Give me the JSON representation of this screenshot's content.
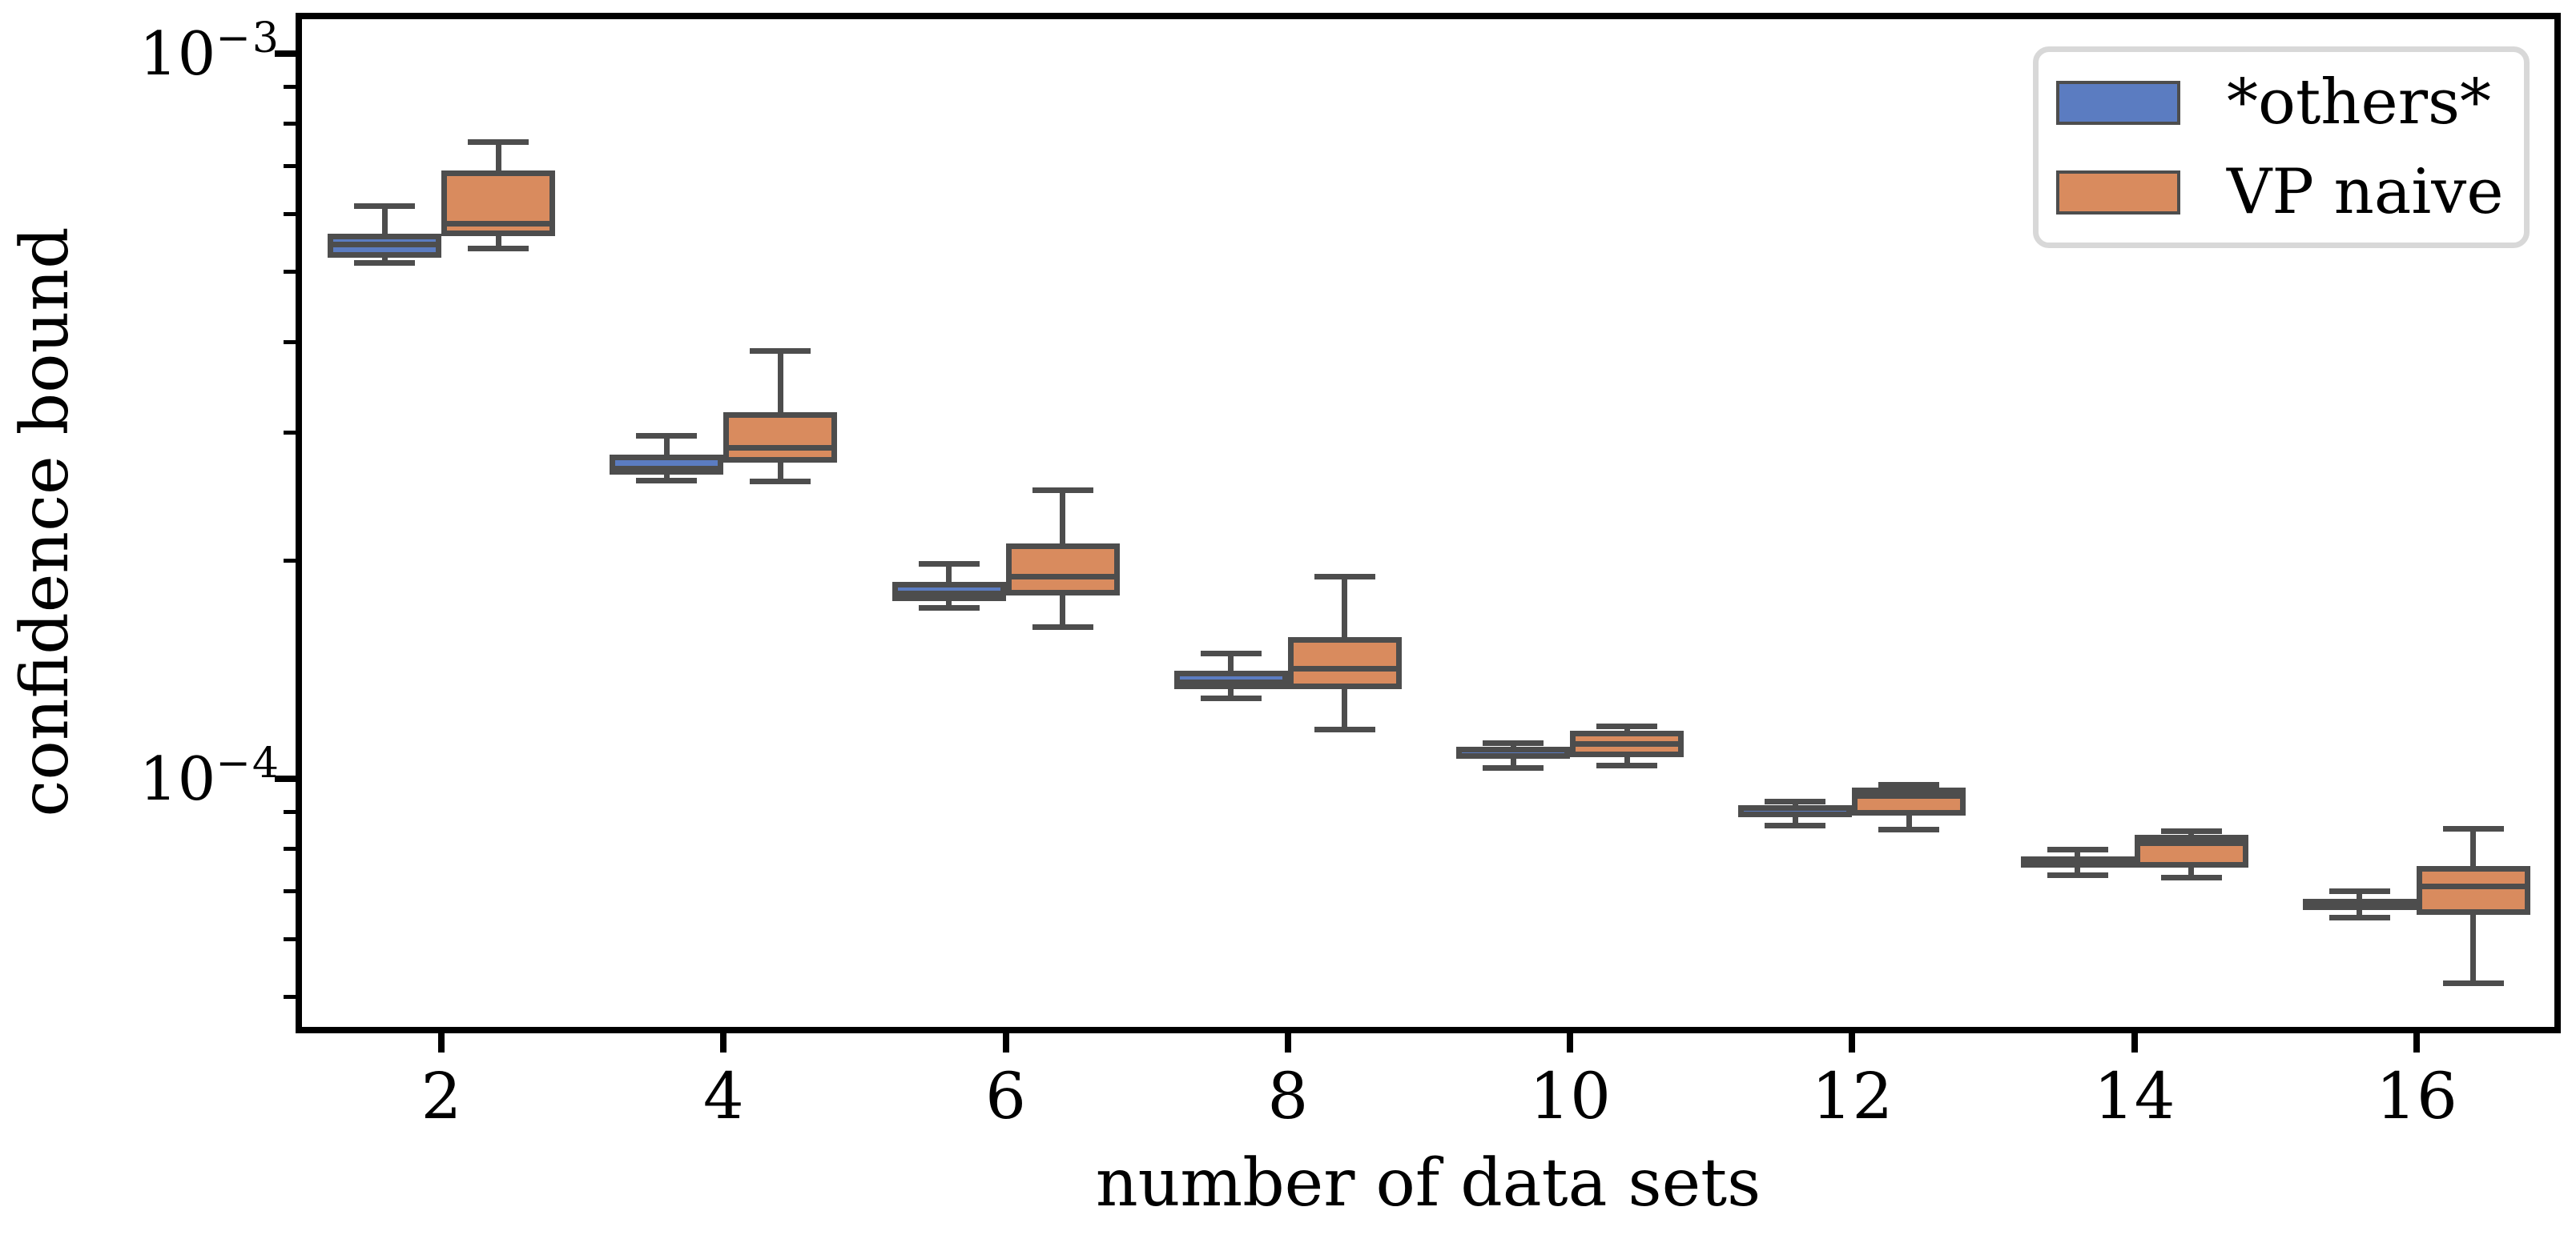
{
  "figure": {
    "background": "#ffffff",
    "spine_color": "#000000",
    "edge_color": "#4d4d4d",
    "legend_border_color": "#d8d8d8"
  },
  "chart_data": {
    "type": "boxplot",
    "orientation": "vertical",
    "xlabel": "number of data sets",
    "ylabel": "confidence bound",
    "y_scale": "log",
    "ylim": [
      4.5e-05,
      0.001127
    ],
    "xlim": [
      0.99,
      17.02
    ],
    "grid": false,
    "legend_position": "upper right",
    "xticks": [
      2,
      4,
      6,
      8,
      10,
      12,
      14,
      16
    ],
    "xtick_labels": [
      "2",
      "4",
      "6",
      "8",
      "10",
      "12",
      "14",
      "16"
    ],
    "yticks": [
      {
        "value": 0.001,
        "base": "10",
        "exponent": "−3"
      },
      {
        "value": 0.0001,
        "base": "10",
        "exponent": "−4"
      }
    ],
    "yticks_minor": [
      0.0009,
      0.0008,
      0.0007,
      0.0006,
      0.0005,
      0.0004,
      0.0003,
      0.0002,
      9e-05,
      8e-05,
      7e-05,
      6e-05,
      5e-05
    ],
    "series": [
      {
        "name": "*others*",
        "color": "#5b7cc1",
        "boxes": [
          {
            "x": 2,
            "whislo": 0.000515,
            "q1": 0.000523,
            "med": 0.000545,
            "q3": 0.000565,
            "whishi": 0.000616
          },
          {
            "x": 4,
            "whislo": 0.000258,
            "q1": 0.000263,
            "med": 0.000268,
            "q3": 0.00028,
            "whishi": 0.000297
          },
          {
            "x": 6,
            "whislo": 0.000172,
            "q1": 0.000176,
            "med": 0.00018,
            "q3": 0.000187,
            "whishi": 0.000198
          },
          {
            "x": 8,
            "whislo": 0.000129,
            "q1": 0.000133,
            "med": 0.000136,
            "q3": 0.000141,
            "whishi": 0.000149
          },
          {
            "x": 10,
            "whislo": 0.0001034,
            "q1": 0.0001066,
            "med": 0.0001076,
            "q3": 0.0001107,
            "whishi": 0.0001121
          },
          {
            "x": 12,
            "whislo": 8.61e-05,
            "q1": 8.85e-05,
            "med": 8.92e-05,
            "q3": 9.2e-05,
            "whishi": 9.31e-05
          },
          {
            "x": 14,
            "whislo": 7.37e-05,
            "q1": 7.58e-05,
            "med": 7.66e-05,
            "q3": 7.82e-05,
            "whishi": 7.98e-05
          },
          {
            "x": 16,
            "whislo": 6.43e-05,
            "q1": 6.59e-05,
            "med": 6.68e-05,
            "q3": 6.83e-05,
            "whishi": 6.99e-05
          }
        ]
      },
      {
        "name": "VP naive",
        "color": "#d98b5e",
        "boxes": [
          {
            "x": 2,
            "whislo": 0.000539,
            "q1": 0.00056,
            "med": 0.000582,
            "q3": 0.00069,
            "whishi": 0.000756
          },
          {
            "x": 4,
            "whislo": 0.000257,
            "q1": 0.000273,
            "med": 0.000286,
            "q3": 0.00032,
            "whishi": 0.000389
          },
          {
            "x": 6,
            "whislo": 0.000162,
            "q1": 0.000179,
            "med": 0.00019,
            "q3": 0.000211,
            "whishi": 0.00025
          },
          {
            "x": 8,
            "whislo": 0.000117,
            "q1": 0.000133,
            "med": 0.000142,
            "q3": 0.000157,
            "whishi": 0.00019
          },
          {
            "x": 10,
            "whislo": 0.0001042,
            "q1": 0.0001071,
            "med": 0.0001118,
            "q3": 0.0001165,
            "whishi": 0.000118
          },
          {
            "x": 12,
            "whislo": 8.52e-05,
            "q1": 8.9e-05,
            "med": 9.46e-05,
            "q3": 9.72e-05,
            "whishi": 9.82e-05
          },
          {
            "x": 14,
            "whislo": 7.3e-05,
            "q1": 7.54e-05,
            "med": 8.16e-05,
            "q3": 8.37e-05,
            "whishi": 8.46e-05
          },
          {
            "x": 16,
            "whislo": 5.23e-05,
            "q1": 6.49e-05,
            "med": 7.11e-05,
            "q3": 7.58e-05,
            "whishi": 8.54e-05
          }
        ]
      }
    ]
  },
  "legend": {
    "entries": [
      {
        "label": "*others*",
        "color": "#5b7cc1"
      },
      {
        "label": "VP naive",
        "color": "#d98b5e"
      }
    ]
  }
}
